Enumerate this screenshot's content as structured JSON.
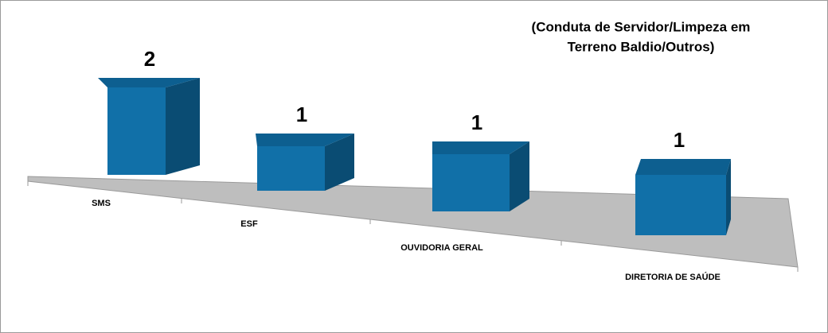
{
  "chart_data": {
    "type": "bar3d",
    "title": [
      "(Conduta de Servidor/Limpeza em",
      "Terreno Baldio/Outros)"
    ],
    "categories": [
      "SMS",
      "ESF",
      "OUVIDORIA GERAL",
      "DIRETORIA DE SAÚDE"
    ],
    "values": [
      2,
      1,
      1,
      1
    ],
    "color": "#1170a8"
  }
}
